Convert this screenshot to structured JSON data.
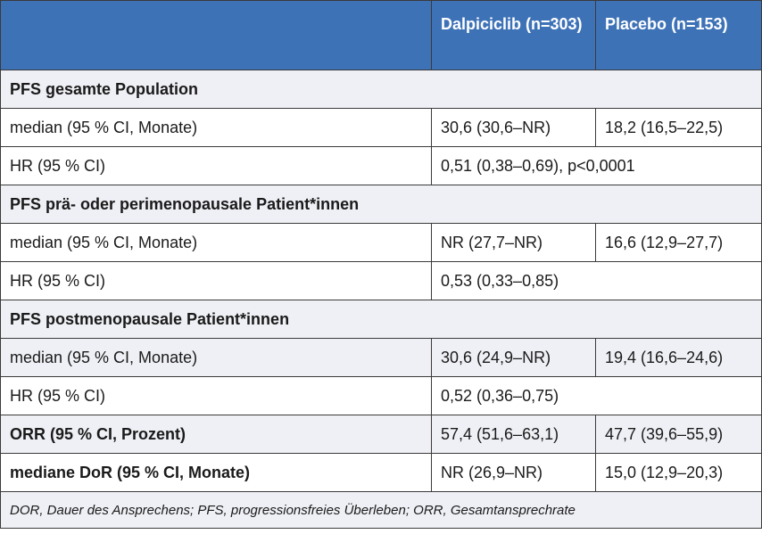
{
  "header": {
    "col1": "",
    "col2": "Dalpiciclib (n=303)",
    "col3": "Placebo (n=153)"
  },
  "rows": [
    {
      "type": "section",
      "label": "PFS gesamte Population"
    },
    {
      "type": "pair",
      "label": "median (95 % CI, Monate)",
      "dalpiciclib": "30,6 (30,6–NR)",
      "placebo": "18,2 (16,5–22,5)"
    },
    {
      "type": "merged",
      "label": "HR (95 % CI)",
      "value": "0,51 (0,38–0,69), p<0,0001"
    },
    {
      "type": "section",
      "label": "PFS prä- oder perimenopausale Patient*innen"
    },
    {
      "type": "pair",
      "label": "median (95 % CI, Monate)",
      "dalpiciclib": "NR (27,7–NR)",
      "placebo": "16,6 (12,9–27,7)"
    },
    {
      "type": "merged",
      "label": "HR (95 % CI)",
      "value": "0,53 (0,33–0,85)"
    },
    {
      "type": "section",
      "label": "PFS postmenopausale Patient*innen"
    },
    {
      "type": "pair",
      "label": "median (95 % CI, Monate)",
      "dalpiciclib": "30,6 (24,9–NR)",
      "placebo": "19,4 (16,6–24,6)"
    },
    {
      "type": "merged",
      "label": "HR (95 % CI)",
      "value": "0,52 (0,36–0,75)"
    },
    {
      "type": "pair-bold",
      "label": "ORR (95 % CI, Prozent)",
      "dalpiciclib": "57,4 (51,6–63,1)",
      "placebo": "47,7 (39,6–55,9)"
    },
    {
      "type": "pair-bold",
      "label": "mediane DoR (95 % CI, Monate)",
      "dalpiciclib": "NR (26,9–NR)",
      "placebo": "15,0 (12,9–20,3)"
    }
  ],
  "footnote": "DOR, Dauer des Ansprechens; PFS, progressionsfreies Überleben; ORR, Gesamtansprechrate",
  "colors": {
    "header_bg": "#3e72b7",
    "row_shade": "#eff0f5",
    "border": "#3a3a3a"
  }
}
